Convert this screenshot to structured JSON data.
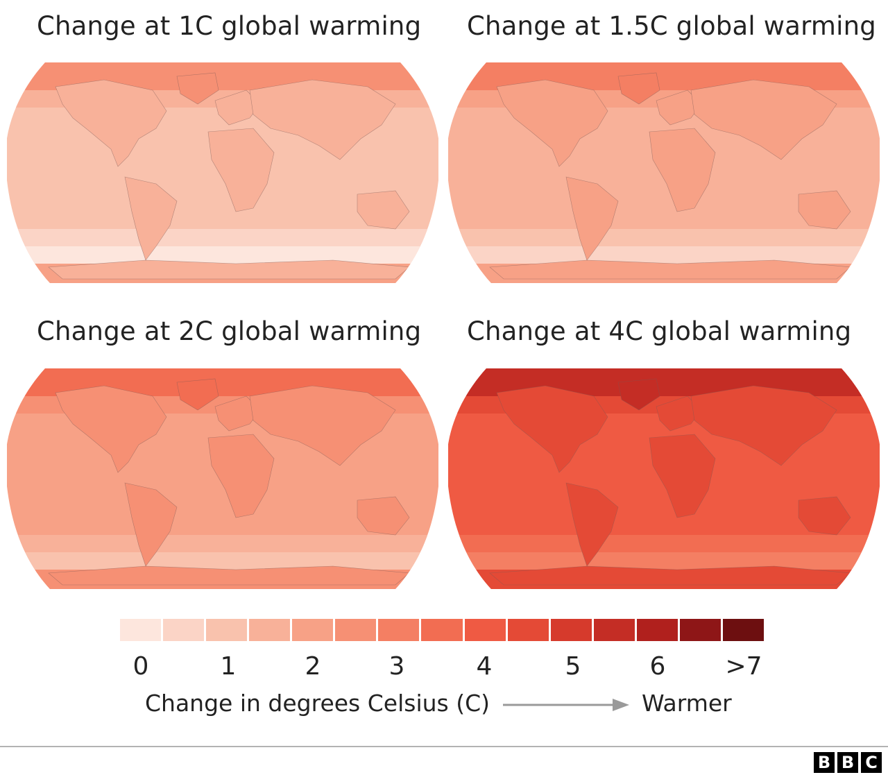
{
  "panels": [
    {
      "title": "Change at 1C global warming",
      "level": 0.13
    },
    {
      "title": "Change at 1.5C global warming",
      "level": 0.2
    },
    {
      "title": "Change at 2C global warming",
      "level": 0.27
    },
    {
      "title": "Change at 4C global warming",
      "level": 0.55
    }
  ],
  "legend": {
    "colors": [
      "#fde6dd",
      "#fbd4c6",
      "#f9c2ad",
      "#f8b199",
      "#f7a186",
      "#f69074",
      "#f47f63",
      "#f26d52",
      "#ef5a43",
      "#e44a36",
      "#d63a2c",
      "#c42d25",
      "#b0201d",
      "#8e1617",
      "#6d0f10"
    ],
    "tick_labels": [
      "0",
      "1",
      "2",
      "3",
      "4",
      "5",
      "6",
      ">7"
    ],
    "caption": "Change in degrees Celsius (C)",
    "direction_label": "Warmer"
  },
  "branding": {
    "letters": [
      "B",
      "B",
      "C"
    ]
  }
}
